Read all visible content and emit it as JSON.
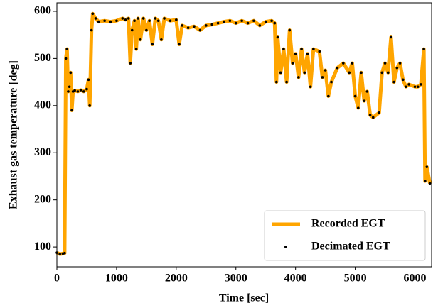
{
  "chart_data": {
    "type": "line",
    "xlabel": "Time [sec]",
    "ylabel": "Exhaust gas temperature [deg]",
    "x": [
      0,
      50,
      100,
      130,
      150,
      170,
      190,
      210,
      230,
      250,
      270,
      300,
      350,
      400,
      450,
      500,
      530,
      550,
      580,
      600,
      650,
      700,
      800,
      900,
      1000,
      1100,
      1150,
      1200,
      1230,
      1260,
      1300,
      1330,
      1360,
      1400,
      1450,
      1500,
      1550,
      1600,
      1650,
      1700,
      1750,
      1800,
      1900,
      2000,
      2050,
      2100,
      2200,
      2300,
      2400,
      2500,
      2600,
      2700,
      2800,
      2900,
      3000,
      3100,
      3200,
      3300,
      3400,
      3500,
      3600,
      3650,
      3680,
      3700,
      3750,
      3800,
      3850,
      3900,
      3950,
      4000,
      4050,
      4100,
      4150,
      4200,
      4250,
      4300,
      4400,
      4450,
      4500,
      4550,
      4600,
      4700,
      4800,
      4900,
      4950,
      5000,
      5050,
      5100,
      5150,
      5200,
      5250,
      5300,
      5400,
      5450,
      5500,
      5550,
      5600,
      5650,
      5700,
      5750,
      5800,
      5850,
      5900,
      6000,
      6050,
      6100,
      6150,
      6170,
      6200,
      6250
    ],
    "series": [
      {
        "name": "Recorded EGT",
        "color": "#ffa500",
        "style": "line",
        "values": [
          88,
          85,
          86,
          87,
          500,
          520,
          430,
          440,
          470,
          390,
          430,
          432,
          430,
          433,
          430,
          435,
          455,
          400,
          560,
          595,
          585,
          578,
          580,
          578,
          580,
          585,
          582,
          585,
          490,
          560,
          580,
          520,
          585,
          540,
          585,
          560,
          580,
          530,
          585,
          580,
          540,
          585,
          580,
          582,
          530,
          570,
          565,
          568,
          560,
          570,
          572,
          575,
          578,
          580,
          575,
          580,
          575,
          580,
          570,
          578,
          580,
          575,
          450,
          545,
          470,
          520,
          450,
          560,
          490,
          510,
          460,
          520,
          470,
          510,
          440,
          520,
          515,
          460,
          475,
          420,
          450,
          480,
          490,
          470,
          490,
          420,
          395,
          470,
          410,
          430,
          380,
          375,
          385,
          470,
          490,
          470,
          545,
          450,
          480,
          490,
          455,
          440,
          445,
          440,
          440,
          445,
          520,
          240,
          270,
          235
        ]
      },
      {
        "name": "Decimated EGT",
        "color": "#000000",
        "style": "scatter",
        "values": [
          88,
          85,
          86,
          87,
          500,
          520,
          430,
          440,
          470,
          390,
          430,
          432,
          430,
          433,
          430,
          435,
          455,
          400,
          560,
          595,
          585,
          578,
          580,
          578,
          580,
          585,
          582,
          585,
          490,
          560,
          580,
          520,
          585,
          540,
          585,
          560,
          580,
          530,
          585,
          580,
          540,
          585,
          580,
          582,
          530,
          570,
          565,
          568,
          560,
          570,
          572,
          575,
          578,
          580,
          575,
          580,
          575,
          580,
          570,
          578,
          580,
          575,
          450,
          545,
          470,
          520,
          450,
          560,
          490,
          510,
          460,
          520,
          470,
          510,
          440,
          520,
          515,
          460,
          475,
          420,
          450,
          480,
          490,
          470,
          490,
          420,
          395,
          470,
          410,
          430,
          380,
          375,
          385,
          470,
          490,
          470,
          545,
          450,
          480,
          490,
          455,
          440,
          445,
          440,
          440,
          445,
          520,
          240,
          270,
          235
        ]
      }
    ],
    "xlim": [
      0,
      6280
    ],
    "ylim": [
      58,
      618
    ],
    "xticks": [
      0,
      1000,
      2000,
      3000,
      4000,
      5000,
      6000
    ],
    "yticks": [
      100,
      200,
      300,
      400,
      500,
      600
    ],
    "legend": "lower right"
  }
}
